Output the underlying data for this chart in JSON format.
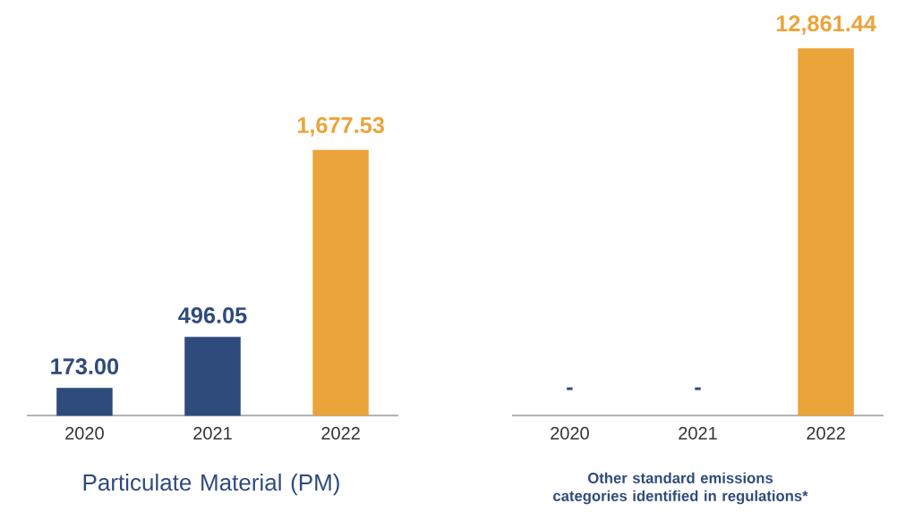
{
  "chart_data": [
    {
      "type": "bar",
      "title": "Particulate Material (PM)",
      "categories": [
        "2020",
        "2021",
        "2022"
      ],
      "values": [
        173.0,
        496.05,
        1677.53
      ],
      "colors": [
        "#2f4b7c",
        "#2f4b7c",
        "#eba43a"
      ],
      "value_labels": [
        "173.00",
        "496.05",
        "1,677.53"
      ]
    },
    {
      "type": "bar",
      "title": "Other standard emissions categories identified in regulations*",
      "categories": [
        "2020",
        "2021",
        "2022"
      ],
      "values": [
        null,
        null,
        12861.44
      ],
      "colors": [
        "#2f4b7c",
        "#2f4b7c",
        "#eba43a"
      ],
      "value_labels": [
        "-",
        "-",
        "12,861.44"
      ]
    }
  ]
}
